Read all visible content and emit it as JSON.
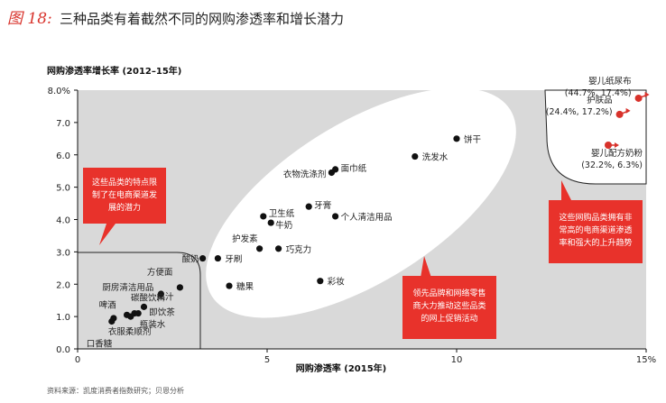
{
  "figure": {
    "label": "图 18:",
    "title": "三种品类有着截然不同的网购渗透率和增长潜力",
    "source": "资料来源：凯度消费者指数研究；贝恩分析"
  },
  "chart_data": {
    "type": "scatter",
    "xlabel": "网购渗透率 (2015年)",
    "ylabel": "网购渗透率增长率 (2012–15年)",
    "xlim": [
      0,
      15
    ],
    "ylim": [
      0,
      8
    ],
    "x_ticks": [
      "0",
      "5",
      "10",
      "15%"
    ],
    "y_ticks": [
      "0.0",
      "1.0",
      "2.0",
      "3.0",
      "4.0",
      "5.0",
      "6.0",
      "7.0",
      "8.0%"
    ],
    "grid": false,
    "background_color": "#d9d9d9",
    "points": [
      {
        "name": "饼干",
        "x": 10.0,
        "y": 6.5
      },
      {
        "name": "洗发水",
        "x": 8.9,
        "y": 5.95
      },
      {
        "name": "面巾纸",
        "x": 6.8,
        "y": 5.55
      },
      {
        "name": "衣物洗涤剂",
        "x": 6.7,
        "y": 5.45
      },
      {
        "name": "牙膏",
        "x": 6.1,
        "y": 4.4
      },
      {
        "name": "卫生纸",
        "x": 4.9,
        "y": 4.1
      },
      {
        "name": "个人清洁用品",
        "x": 6.8,
        "y": 4.1
      },
      {
        "name": "牛奶",
        "x": 5.1,
        "y": 3.9
      },
      {
        "name": "护发素",
        "x": 4.8,
        "y": 3.1
      },
      {
        "name": "巧克力",
        "x": 5.3,
        "y": 3.1
      },
      {
        "name": "酸奶",
        "x": 3.3,
        "y": 2.8
      },
      {
        "name": "牙刷",
        "x": 3.7,
        "y": 2.8
      },
      {
        "name": "彩妆",
        "x": 6.4,
        "y": 2.1
      },
      {
        "name": "糖果",
        "x": 4.0,
        "y": 1.95
      },
      {
        "name": "方便面",
        "x": 2.7,
        "y": 1.9
      },
      {
        "name": "厨房清洁用品",
        "x": 2.2,
        "y": 1.7
      },
      {
        "name": "果汁",
        "x": 1.75,
        "y": 1.3
      },
      {
        "name": "碳酸饮料",
        "x": 1.5,
        "y": 1.1
      },
      {
        "name": "即饮茶",
        "x": 1.6,
        "y": 1.1
      },
      {
        "name": "啤酒",
        "x": 1.3,
        "y": 1.05
      },
      {
        "name": "瓶装水",
        "x": 1.4,
        "y": 1.0
      },
      {
        "name": "衣服柔顺剂",
        "x": 0.95,
        "y": 0.95
      },
      {
        "name": "口香糖",
        "x": 0.9,
        "y": 0.85
      }
    ],
    "outliers": [
      {
        "name": "婴儿纸尿布",
        "value_label": "(44.7%, 17.4%)",
        "x": 14.8,
        "y": 7.75
      },
      {
        "name": "护肤品",
        "value_label": "(24.4%, 17.2%)",
        "x": 14.3,
        "y": 7.25
      },
      {
        "name": "婴儿配方奶粉",
        "value_label": "(32.2%, 6.3%)",
        "x": 14.0,
        "y": 6.3
      }
    ],
    "callouts": [
      {
        "text_lines": [
          "这些品类的特点限",
          "制了在电商渠道发",
          "展的潜力"
        ]
      },
      {
        "text_lines": [
          "领先品牌和网络零售",
          "商大力推动这些品类",
          "的网上促销活动"
        ]
      },
      {
        "text_lines": [
          "这些网购品类拥有非",
          "常高的电商渠道渗透",
          "率和强大的上升趋势"
        ]
      }
    ],
    "colors": {
      "point": "#111111",
      "outlier_point": "#d8322b",
      "callout_fill": "#e8322b",
      "plot_background": "#d9d9d9",
      "highlight_ellipse": "#ffffff"
    }
  }
}
